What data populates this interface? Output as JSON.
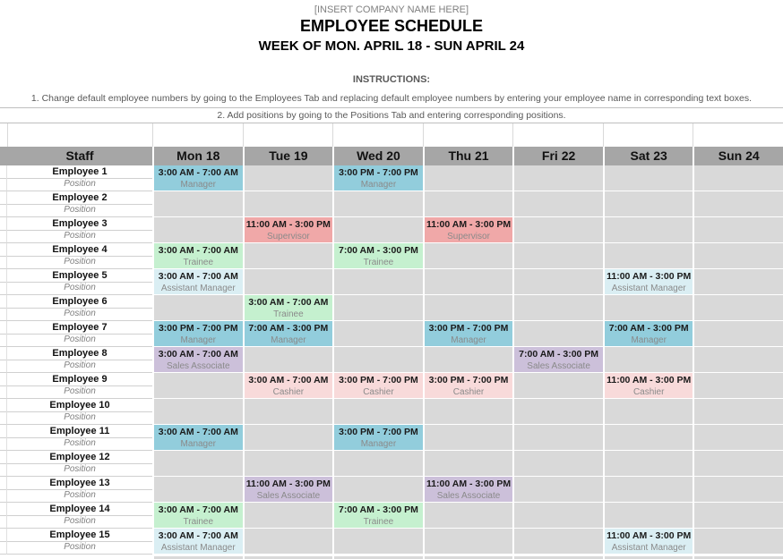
{
  "header": {
    "company_placeholder": "[INSERT COMPANY NAME HERE]",
    "title": "EMPLOYEE SCHEDULE",
    "week_range": "WEEK OF MON. APRIL 18 - SUN APRIL 24",
    "instructions_label": "INSTRUCTIONS:",
    "instructions": [
      "1. Change default employee numbers by going to the Employees Tab and replacing default employee numbers by entering your employee name in corresponding text boxes.",
      "2. Add positions by going to the Positions Tab and entering corresponding positions."
    ]
  },
  "colors": {
    "header_row_bg": "#A6A6A6",
    "empty_cell_bg": "#D9D9D9",
    "manager": "#92CDDC",
    "supervisor": "#F0A8A8",
    "trainee": "#C5F0CF",
    "assistant_manager": "#DAEEF3",
    "sales_associate": "#CCC0DA",
    "cashier": "#F8DADA"
  },
  "table": {
    "staff_header": "Staff",
    "days": [
      "Mon 18",
      "Tue 19",
      "Wed 20",
      "Thu 21",
      "Fri 22",
      "Sat 23",
      "Sun 24"
    ],
    "position_label": "Position",
    "employees": [
      {
        "name": "Employee 1",
        "shifts": [
          {
            "time": "3:00 AM - 7:00 AM",
            "position": "Manager",
            "color": "manager"
          },
          null,
          {
            "time": "3:00 PM - 7:00 PM",
            "position": "Manager",
            "color": "manager"
          },
          null,
          null,
          null,
          null
        ]
      },
      {
        "name": "Employee 2",
        "shifts": [
          null,
          null,
          null,
          null,
          null,
          null,
          null
        ]
      },
      {
        "name": "Employee 3",
        "shifts": [
          null,
          {
            "time": "11:00 AM - 3:00 PM",
            "position": "Supervisor",
            "color": "supervisor"
          },
          null,
          {
            "time": "11:00 AM - 3:00 PM",
            "position": "Supervisor",
            "color": "supervisor"
          },
          null,
          null,
          null
        ]
      },
      {
        "name": "Employee 4",
        "shifts": [
          {
            "time": "3:00 AM - 7:00 AM",
            "position": "Trainee",
            "color": "trainee"
          },
          null,
          {
            "time": "7:00 AM - 3:00 PM",
            "position": "Trainee",
            "color": "trainee"
          },
          null,
          null,
          null,
          null
        ]
      },
      {
        "name": "Employee 5",
        "shifts": [
          {
            "time": "3:00 AM - 7:00 AM",
            "position": "Assistant Manager",
            "color": "assistant_manager"
          },
          null,
          null,
          null,
          null,
          {
            "time": "11:00 AM - 3:00 PM",
            "position": "Assistant Manager",
            "color": "assistant_manager"
          },
          null
        ]
      },
      {
        "name": "Employee 6",
        "shifts": [
          null,
          {
            "time": "3:00 AM - 7:00 AM",
            "position": "Trainee",
            "color": "trainee"
          },
          null,
          null,
          null,
          null,
          null
        ]
      },
      {
        "name": "Employee 7",
        "shifts": [
          {
            "time": "3:00 PM - 7:00 PM",
            "position": "Manager",
            "color": "manager"
          },
          {
            "time": "7:00 AM - 3:00 PM",
            "position": "Manager",
            "color": "manager"
          },
          null,
          {
            "time": "3:00 PM - 7:00 PM",
            "position": "Manager",
            "color": "manager"
          },
          null,
          {
            "time": "7:00 AM - 3:00 PM",
            "position": "Manager",
            "color": "manager"
          },
          null
        ]
      },
      {
        "name": "Employee 8",
        "shifts": [
          {
            "time": "3:00 AM - 7:00 AM",
            "position": "Sales Associate",
            "color": "sales_associate"
          },
          null,
          null,
          null,
          {
            "time": "7:00 AM - 3:00 PM",
            "position": "Sales Associate",
            "color": "sales_associate"
          },
          null,
          null
        ]
      },
      {
        "name": "Employee 9",
        "shifts": [
          null,
          {
            "time": "3:00 AM - 7:00 AM",
            "position": "Cashier",
            "color": "cashier"
          },
          {
            "time": "3:00 PM - 7:00 PM",
            "position": "Cashier",
            "color": "cashier"
          },
          {
            "time": "3:00 PM - 7:00 PM",
            "position": "Cashier",
            "color": "cashier"
          },
          null,
          {
            "time": "11:00 AM - 3:00 PM",
            "position": "Cashier",
            "color": "cashier"
          },
          null
        ]
      },
      {
        "name": "Employee 10",
        "shifts": [
          null,
          null,
          null,
          null,
          null,
          null,
          null
        ]
      },
      {
        "name": "Employee 11",
        "shifts": [
          {
            "time": "3:00 AM - 7:00 AM",
            "position": "Manager",
            "color": "manager"
          },
          null,
          {
            "time": "3:00 PM - 7:00 PM",
            "position": "Manager",
            "color": "manager"
          },
          null,
          null,
          null,
          null
        ]
      },
      {
        "name": "Employee 12",
        "shifts": [
          null,
          null,
          null,
          null,
          null,
          null,
          null
        ]
      },
      {
        "name": "Employee 13",
        "shifts": [
          null,
          {
            "time": "11:00 AM - 3:00 PM",
            "position": "Sales Associate",
            "color": "sales_associate"
          },
          null,
          {
            "time": "11:00 AM - 3:00 PM",
            "position": "Sales Associate",
            "color": "sales_associate"
          },
          null,
          null,
          null
        ]
      },
      {
        "name": "Employee 14",
        "shifts": [
          {
            "time": "3:00 AM - 7:00 AM",
            "position": "Trainee",
            "color": "trainee"
          },
          null,
          {
            "time": "7:00 AM - 3:00 PM",
            "position": "Trainee",
            "color": "trainee"
          },
          null,
          null,
          null,
          null
        ]
      },
      {
        "name": "Employee 15",
        "shifts": [
          {
            "time": "3:00 AM - 7:00 AM",
            "position": "Assistant Manager",
            "color": "assistant_manager"
          },
          null,
          null,
          null,
          null,
          {
            "time": "11:00 AM - 3:00 PM",
            "position": "Assistant Manager",
            "color": "assistant_manager"
          },
          null
        ]
      }
    ]
  }
}
